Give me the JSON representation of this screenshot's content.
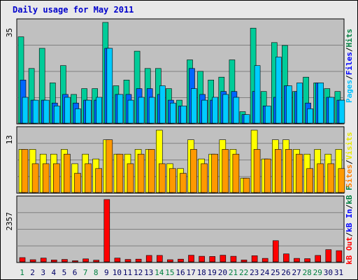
{
  "title": "Daily usage for May 2011",
  "colors": {
    "hits": "#00cc99",
    "files": "#0066ff",
    "pages": "#00ccff",
    "visits": "#ffff00",
    "sites": "#ff9900",
    "kb_out": "#ff0000",
    "weekend_day": "#008040",
    "weekday": "#000066",
    "label_hits": "#008040",
    "label_files": "#0000ff",
    "label_pages": "#00c0ff",
    "label_visits": "#e6e600",
    "label_sites": "#ff8000",
    "label_kb": "#ff0000",
    "panel_bg": "#c0c0c0"
  },
  "axis": {
    "top_max": "35",
    "mid_max": "13",
    "bottom_max": "2357"
  },
  "legends": {
    "top": [
      "Hits",
      "/",
      "Files",
      "/",
      "Pages"
    ],
    "mid": [
      "Visits",
      "/",
      "Sites"
    ],
    "bottom": [
      "kB F",
      "/",
      "kB In",
      "/",
      "kB Out"
    ]
  },
  "chart_data": {
    "type": "bar",
    "categories": [
      "1",
      "2",
      "3",
      "4",
      "5",
      "6",
      "7",
      "8",
      "9",
      "10",
      "11",
      "12",
      "13",
      "14",
      "15",
      "16",
      "17",
      "18",
      "19",
      "20",
      "21",
      "22",
      "23",
      "24",
      "25",
      "26",
      "27",
      "28",
      "29",
      "30",
      "31"
    ],
    "weekend_days": [
      1,
      7,
      8,
      14,
      15,
      21,
      22,
      28,
      29
    ],
    "series": [
      {
        "name": "Hits",
        "values": [
          30,
          19,
          26,
          14,
          20,
          10,
          12,
          12,
          35,
          13,
          15,
          25,
          19,
          19,
          12,
          8,
          22,
          18,
          15,
          16,
          22,
          4,
          33,
          11,
          28,
          27,
          11,
          16,
          14,
          12,
          11
        ]
      },
      {
        "name": "Files",
        "values": [
          15,
          8,
          8,
          7,
          10,
          7,
          8,
          8,
          26,
          10,
          10,
          12,
          12,
          10,
          8,
          6,
          19,
          10,
          8,
          11,
          11,
          3,
          11,
          6,
          9,
          13,
          11,
          7,
          14,
          9,
          8
        ]
      },
      {
        "name": "Pages",
        "values": [
          9,
          8,
          8,
          6,
          9,
          5,
          8,
          9,
          26,
          10,
          8,
          9,
          9,
          13,
          7,
          6,
          12,
          8,
          9,
          10,
          9,
          3,
          20,
          6,
          23,
          13,
          14,
          5,
          14,
          9,
          8
        ]
      },
      {
        "name": "Visits",
        "values": [
          9,
          9,
          8,
          8,
          9,
          6,
          8,
          7,
          11,
          8,
          8,
          9,
          9,
          13,
          6,
          5,
          11,
          7,
          8,
          11,
          9,
          3,
          13,
          7,
          11,
          11,
          9,
          8,
          9,
          8,
          9
        ]
      },
      {
        "name": "Sites",
        "values": [
          9,
          6,
          6,
          6,
          8,
          4,
          6,
          5,
          11,
          8,
          6,
          8,
          9,
          6,
          5,
          4,
          9,
          6,
          8,
          9,
          8,
          3,
          9,
          7,
          9,
          9,
          8,
          5,
          6,
          6,
          5
        ]
      },
      {
        "name": "kB Out",
        "values": [
          160,
          80,
          140,
          70,
          90,
          40,
          110,
          60,
          2357,
          140,
          90,
          100,
          240,
          240,
          80,
          100,
          250,
          210,
          200,
          250,
          210,
          70,
          230,
          130,
          800,
          300,
          130,
          120,
          240,
          460,
          420
        ]
      }
    ],
    "ylim_top": [
      0,
      35
    ],
    "ylim_mid": [
      0,
      13
    ],
    "ylim_bottom": [
      0,
      2357
    ]
  }
}
